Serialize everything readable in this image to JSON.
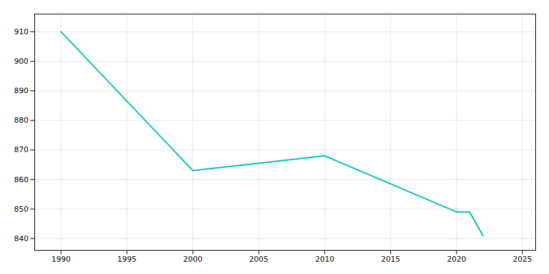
{
  "chart_data": {
    "type": "line",
    "x": [
      1990,
      2000,
      2010,
      2020,
      2021,
      2022
    ],
    "values": [
      910,
      863,
      868,
      849,
      849,
      841
    ],
    "color": "#00BEBE",
    "xlim": [
      1988,
      2026
    ],
    "ylim": [
      836,
      916
    ],
    "xticks": [
      1990,
      1995,
      2000,
      2005,
      2010,
      2015,
      2020,
      2025
    ],
    "yticks": [
      840,
      850,
      860,
      870,
      880,
      890,
      900,
      910
    ],
    "grid": true
  }
}
